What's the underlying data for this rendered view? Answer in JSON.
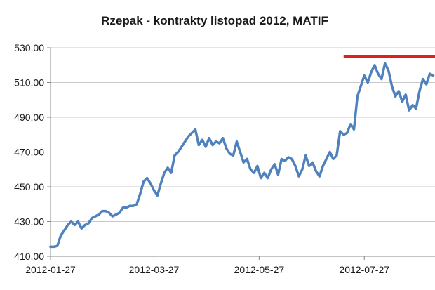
{
  "chart_data": {
    "type": "line",
    "title": "Rzepak - kontrakty listopad 2012, MATIF",
    "xlabel": "",
    "ylabel": "",
    "ylim": [
      410,
      530
    ],
    "yticks": [
      410,
      430,
      450,
      470,
      490,
      510,
      530
    ],
    "ytick_labels": [
      "410,00",
      "430,00",
      "450,00",
      "470,00",
      "490,00",
      "510,00",
      "530,00"
    ],
    "xlim": [
      "2012-01-27",
      "2012-09-06"
    ],
    "xtick_labels": [
      "2012-01-27",
      "2012-03-27",
      "2012-05-27",
      "2012-07-27"
    ],
    "grid": "horizontal",
    "legend": "none",
    "colors": {
      "series": "#4f81bd",
      "reference_line": "#e02020",
      "grid": "#c9c9c9",
      "axis": "#888888"
    },
    "series": [
      {
        "x": [
          "2012-01-27",
          "2012-01-29",
          "2012-01-31",
          "2012-02-02",
          "2012-02-04",
          "2012-02-06",
          "2012-02-08",
          "2012-02-10",
          "2012-02-12",
          "2012-02-14",
          "2012-02-16",
          "2012-02-18",
          "2012-02-20",
          "2012-02-22",
          "2012-02-24",
          "2012-02-26",
          "2012-02-28",
          "2012-03-01",
          "2012-03-03",
          "2012-03-05",
          "2012-03-07",
          "2012-03-09",
          "2012-03-11",
          "2012-03-13",
          "2012-03-15",
          "2012-03-17",
          "2012-03-19",
          "2012-03-21",
          "2012-03-23",
          "2012-03-25",
          "2012-03-27",
          "2012-03-29",
          "2012-03-31",
          "2012-04-02",
          "2012-04-04",
          "2012-04-06",
          "2012-04-08",
          "2012-04-10",
          "2012-04-12",
          "2012-04-14",
          "2012-04-16",
          "2012-04-18",
          "2012-04-20",
          "2012-04-22",
          "2012-04-24",
          "2012-04-26",
          "2012-04-28",
          "2012-04-30",
          "2012-05-02",
          "2012-05-04",
          "2012-05-06",
          "2012-05-08",
          "2012-05-10",
          "2012-05-12",
          "2012-05-14",
          "2012-05-16",
          "2012-05-18",
          "2012-05-20",
          "2012-05-22",
          "2012-05-24",
          "2012-05-26",
          "2012-05-28",
          "2012-05-30",
          "2012-06-01",
          "2012-06-03",
          "2012-06-05",
          "2012-06-07",
          "2012-06-09",
          "2012-06-11",
          "2012-06-13",
          "2012-06-15",
          "2012-06-17",
          "2012-06-19",
          "2012-06-21",
          "2012-06-23",
          "2012-06-25",
          "2012-06-27",
          "2012-06-29",
          "2012-07-01",
          "2012-07-03",
          "2012-07-05",
          "2012-07-07",
          "2012-07-09",
          "2012-07-11",
          "2012-07-13",
          "2012-07-15",
          "2012-07-17",
          "2012-07-19",
          "2012-07-21",
          "2012-07-23",
          "2012-07-25",
          "2012-07-27",
          "2012-07-29",
          "2012-07-31",
          "2012-08-02",
          "2012-08-04",
          "2012-08-06",
          "2012-08-08",
          "2012-08-10",
          "2012-08-12",
          "2012-08-14",
          "2012-08-16",
          "2012-08-18",
          "2012-08-20",
          "2012-08-22",
          "2012-08-24",
          "2012-08-26",
          "2012-08-28",
          "2012-08-30",
          "2012-09-01",
          "2012-09-03",
          "2012-09-05"
        ],
        "y": [
          415.5,
          415.5,
          416,
          422,
          425,
          428,
          430,
          428,
          430,
          426,
          428,
          429,
          432,
          433,
          434,
          436,
          436,
          435,
          433,
          434,
          435,
          438,
          438,
          439,
          439,
          440,
          446,
          453,
          455,
          452,
          448,
          445,
          452,
          458,
          461,
          458,
          468,
          470,
          473,
          476,
          479,
          481,
          483,
          474,
          477,
          473,
          478,
          474,
          476,
          475,
          478,
          472,
          469,
          468,
          476,
          470,
          464,
          466,
          460,
          458,
          462,
          455,
          458,
          455,
          460,
          463,
          457,
          466,
          465,
          467,
          466,
          462,
          456,
          460,
          468,
          462,
          464,
          459,
          456,
          462,
          466,
          470,
          466,
          468,
          482,
          480,
          481,
          486,
          483,
          502,
          508,
          514,
          510,
          516,
          520,
          515,
          512,
          521,
          517,
          508,
          502,
          505,
          499,
          503,
          494,
          497,
          495,
          505,
          512,
          509,
          515,
          514
        ]
      }
    ],
    "reference_line": {
      "y": 525,
      "x_start": "2012-07-15",
      "x_end": "2012-09-06"
    }
  }
}
